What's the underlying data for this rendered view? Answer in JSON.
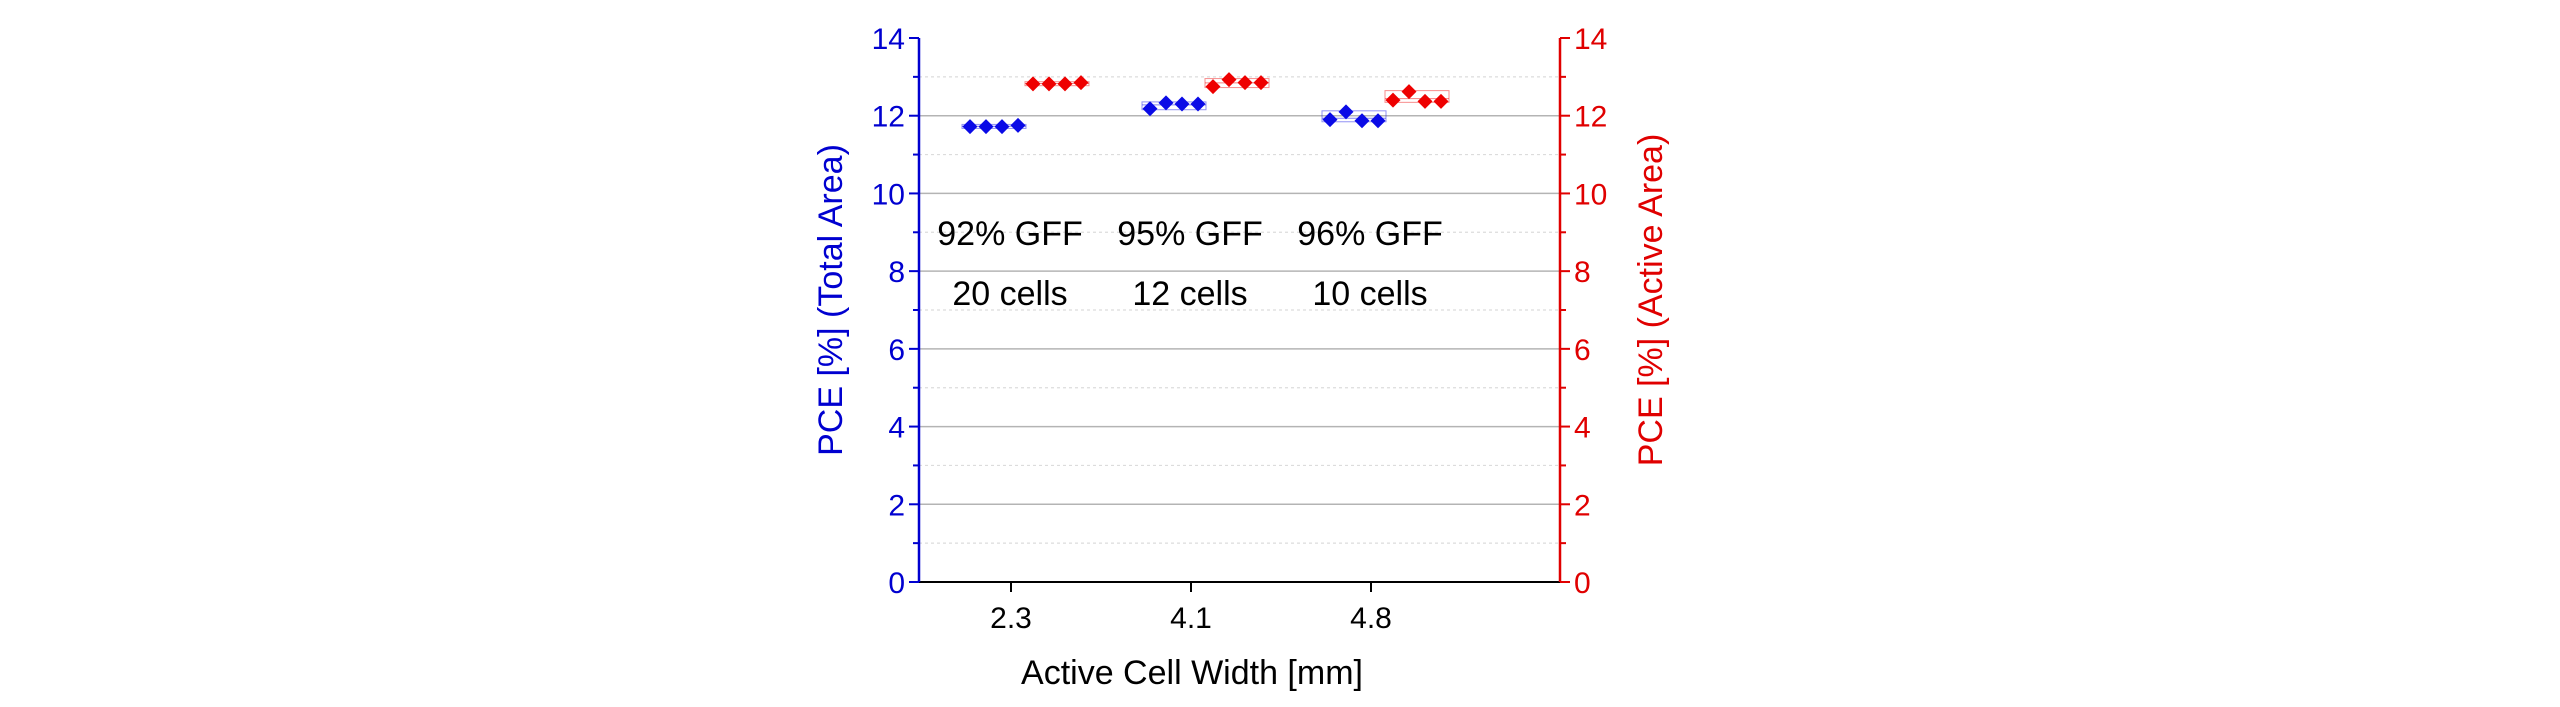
{
  "chart_data": {
    "type": "scatter",
    "title": "",
    "xlabel": "Active Cell Width [mm]",
    "ylabel_left": "PCE [%] (Total Area)",
    "ylabel_right": "PCE [%] (Active Area)",
    "categories": [
      "2.3",
      "4.1",
      "4.8"
    ],
    "ylim_left": [
      0,
      14
    ],
    "ylim_right": [
      0,
      14
    ],
    "yticks_left": [
      "0",
      "2",
      "4",
      "6",
      "8",
      "10",
      "12",
      "14"
    ],
    "yticks_right": [
      "0",
      "2",
      "4",
      "6",
      "8",
      "10",
      "12",
      "14"
    ],
    "grid": true,
    "legend": "none",
    "colors": {
      "left_axis": "#0000d0",
      "right_axis": "#e00000",
      "total_area": "#0a0ae6",
      "active_area": "#ee0000",
      "grid_major": "#b4b4b4",
      "grid_minor": "#dcdcdc",
      "annotation": "#000000"
    },
    "series": [
      {
        "name": "PCE Total Area",
        "axis": "left",
        "marker": "diamond",
        "values": [
          [
            11.72,
            11.72,
            11.72,
            11.75
          ],
          [
            12.18,
            12.33,
            12.3,
            12.3
          ],
          [
            11.9,
            12.1,
            11.87,
            11.87
          ]
        ]
      },
      {
        "name": "PCE Active Area",
        "axis": "right",
        "marker": "diamond",
        "values": [
          [
            12.82,
            12.82,
            12.82,
            12.85
          ],
          [
            12.75,
            12.93,
            12.85,
            12.85
          ],
          [
            12.4,
            12.62,
            12.37,
            12.37
          ]
        ]
      }
    ],
    "annotations": [
      {
        "category": "2.3",
        "lines": [
          "92% GFF",
          "20 cells"
        ]
      },
      {
        "category": "4.1",
        "lines": [
          "95% GFF",
          "12 cells"
        ]
      },
      {
        "category": "4.8",
        "lines": [
          "96% GFF",
          "10 cells"
        ]
      }
    ]
  }
}
